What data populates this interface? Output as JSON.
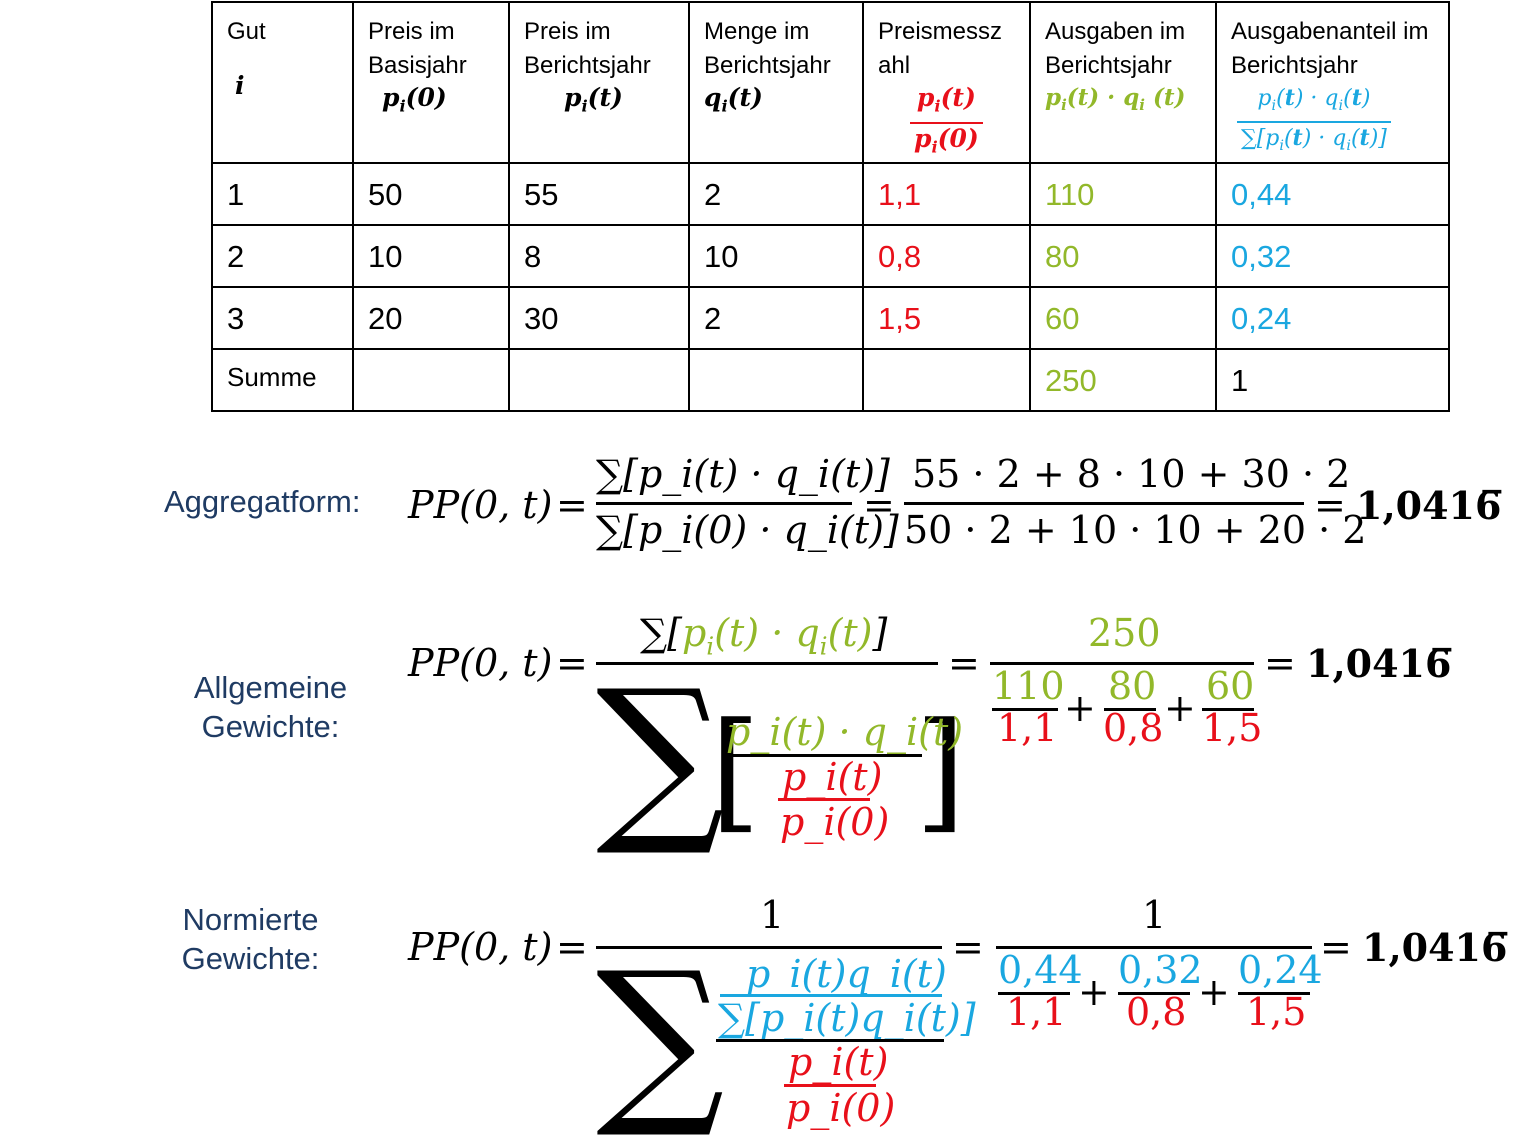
{
  "table": {
    "headers": [
      {
        "text": "Gut",
        "symbol": "i"
      },
      {
        "text": "Preis im Basisjahr",
        "symbol": "p_i(0)"
      },
      {
        "text": "Preis im Berichtsjahr",
        "symbol": "p_i(t)"
      },
      {
        "text": "Menge im Berichtsjahr",
        "symbol": "q_i(t)"
      },
      {
        "text": "Preismesszahl",
        "symbol": "p_i(t) / p_i(0)"
      },
      {
        "text": "Ausgaben im Berichtsjahr",
        "symbol": "p_i(t) · q_i (t)"
      },
      {
        "text": "Ausgabenanteil im Berichtsjahr",
        "symbol": "p_i(t) · q_i(t) / ∑[p_i(t) · q_i(t)]"
      }
    ],
    "rows": [
      [
        "1",
        "50",
        "55",
        "2",
        "1,1",
        "110",
        "0,44"
      ],
      [
        "2",
        "10",
        "8",
        "10",
        "0,8",
        "80",
        "0,32"
      ],
      [
        "3",
        "20",
        "30",
        "2",
        "1,5",
        "60",
        "0,24"
      ],
      [
        "Summe",
        "",
        "",
        "",
        "",
        "250",
        "1"
      ]
    ]
  },
  "colors": {
    "red": "#e8101a",
    "green": "#92b82a",
    "blue": "#1aa7e0",
    "label": "#1f3b63"
  },
  "formulas": {
    "aggregat": {
      "label": "Aggregatform:",
      "lhs": "PP(0, t)",
      "num": "∑[p_i(t) · q_i(t)]",
      "den": "∑[p_i(0) · q_i(t)]",
      "num_values": "55 · 2 + 8 · 10 + 30 · 2",
      "den_values": "50 · 2 + 10 · 10 + 20 · 2",
      "result": "1,0416̅"
    },
    "allgemein": {
      "label_line1": "Allgemeine",
      "label_line2": "Gewichte:",
      "lhs": "PP(0, t)",
      "num": "∑[p_i(t) · q_i(t)]",
      "inner_num": "p_i(t) · q_i(t)",
      "inner_den_num": "p_i(t)",
      "inner_den_den": "p_i(0)",
      "value_num": "250",
      "terms": [
        {
          "n": "110",
          "d": "1,1"
        },
        {
          "n": "80",
          "d": "0,8"
        },
        {
          "n": "60",
          "d": "1,5"
        }
      ],
      "result": "1,0416̅"
    },
    "normiert": {
      "label_line1": "Normierte",
      "label_line2": "Gewichte:",
      "lhs": "PP(0, t)",
      "num": "1",
      "inner_num": "p_i(t)q_i(t)",
      "inner_num_den": "∑[p_i(t)q_i(t)]",
      "inner_den_num": "p_i(t)",
      "inner_den_den": "p_i(0)",
      "value_num": "1",
      "terms": [
        {
          "n": "0,44",
          "d": "1,1"
        },
        {
          "n": "0,32",
          "d": "0,8"
        },
        {
          "n": "0,24",
          "d": "1,5"
        }
      ],
      "result": "1,0416̅"
    }
  }
}
